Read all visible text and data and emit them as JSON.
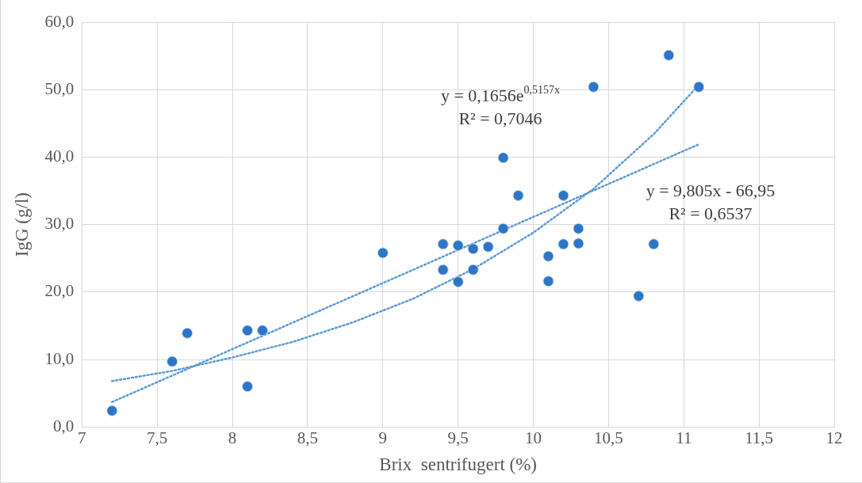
{
  "chart_data": {
    "type": "scatter",
    "xlabel": "Brix  sentrifugert (%)",
    "ylabel": "IgG (g/l)",
    "xlim": [
      7,
      12
    ],
    "xticks": [
      7,
      {
        "value": 7.5,
        "label": "7,5"
      },
      8,
      {
        "value": 8.5,
        "label": "8,5"
      },
      9,
      {
        "value": 9.5,
        "label": "9,5"
      },
      10,
      {
        "value": 10.5,
        "label": "10,5"
      },
      11,
      {
        "value": 11.5,
        "label": "11,5"
      },
      12
    ],
    "ylim": [
      0,
      60
    ],
    "yticks": [
      {
        "value": 0,
        "label": "0,0"
      },
      {
        "value": 10,
        "label": "10,0"
      },
      {
        "value": 20,
        "label": "20,0"
      },
      {
        "value": 30,
        "label": "30,0"
      },
      {
        "value": 40,
        "label": "40,0"
      },
      {
        "value": 50,
        "label": "50,0"
      },
      {
        "value": 60,
        "label": "60,0"
      }
    ],
    "grid": true,
    "legend": false,
    "marker": "circle",
    "series": [
      {
        "type": "scatter",
        "color": "#2e75c6",
        "x": [
          7.2,
          7.6,
          7.7,
          8.1,
          8.1,
          8.2,
          9.0,
          9.4,
          9.4,
          9.5,
          9.5,
          9.6,
          9.6,
          9.7,
          9.8,
          9.8,
          9.9,
          10.1,
          10.1,
          10.2,
          10.2,
          10.3,
          10.3,
          10.4,
          10.7,
          10.8,
          10.9,
          11.1
        ],
        "values": [
          2.4,
          9.7,
          13.9,
          6.0,
          14.3,
          14.3,
          25.8,
          27.1,
          23.3,
          26.9,
          21.5,
          26.4,
          23.3,
          26.7,
          39.9,
          29.4,
          34.3,
          25.3,
          21.6,
          27.1,
          34.3,
          29.4,
          27.2,
          50.4,
          19.4,
          27.1,
          55.1,
          50.4
        ]
      },
      {
        "type": "line",
        "color": "#5b9bd5",
        "line_style": "dotted",
        "marker": "none",
        "x": [
          7.2,
          7.6,
          8.0,
          8.4,
          8.8,
          9.2,
          9.6,
          10.0,
          10.4,
          10.8,
          11.1
        ],
        "values": [
          6.8,
          8.3,
          10.3,
          12.6,
          15.5,
          19.0,
          23.4,
          28.8,
          35.3,
          43.4,
          50.7
        ]
      },
      {
        "type": "line",
        "color": "#5b9bd5",
        "line_style": "dotted",
        "marker": "none",
        "x": [
          7.2,
          11.1
        ],
        "values": [
          3.7,
          41.9
        ]
      }
    ],
    "annotations": [
      "y = 0,1656e$^{0,5157x}$",
      "R² = 0,7046",
      "y = 9,805x - 66,95",
      "R² = 0,6537"
    ]
  }
}
